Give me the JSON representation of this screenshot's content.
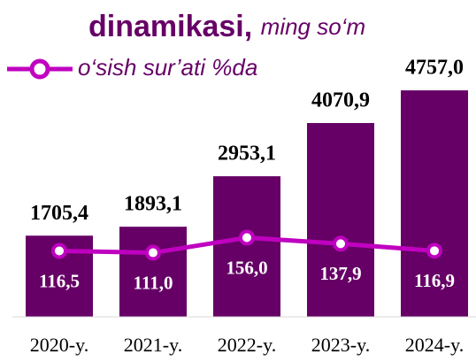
{
  "chart_data": {
    "type": "bar",
    "title": "dinamikasi,",
    "subtitle": "ming so‘m",
    "categories": [
      "2020-y.",
      "2021-y.",
      "2022-y.",
      "2023-y.",
      "2024-y."
    ],
    "series": [
      {
        "name": "",
        "color": "#660066",
        "values": [
          1705.4,
          1893.1,
          2953.1,
          4070.9,
          4757.0
        ],
        "value_labels": [
          "1705,4",
          "1893,1",
          "2953,1",
          "4070,9",
          "4757,0"
        ]
      },
      {
        "name": "o‘sish sur’ati %da",
        "color": "#c000c0",
        "type": "line",
        "axis": "y2",
        "values": [
          116.5,
          111.0,
          156.0,
          137.9,
          116.9
        ],
        "value_labels": [
          "116,5",
          "111,0",
          "156,0",
          "137,9",
          "116,9"
        ]
      }
    ],
    "ylim": [
      0,
      4900
    ],
    "y2lim": [
      -80,
      615
    ],
    "legend": "top-left"
  }
}
